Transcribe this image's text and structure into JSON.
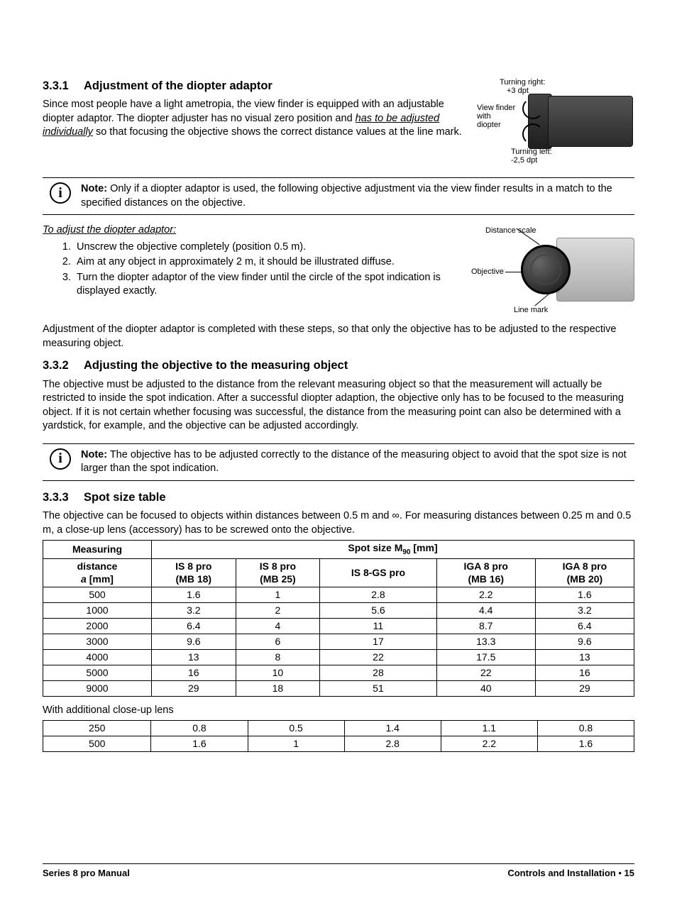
{
  "sec331": {
    "num": "3.3.1",
    "title": "Adjustment of the diopter adaptor",
    "para": "Since most people have a light ametropia, the view finder is equipped with an adjustable diopter adaptor. The diopter adjuster has no visual zero position and ",
    "para_u": "has to be adjusted individually",
    "para2": " so that focusing the objective shows the correct distance values at the line mark."
  },
  "fig1": {
    "l1": "Turning right:",
    "l1b": "+3 dpt",
    "l2a": "View finder",
    "l2b": "with",
    "l2c": "diopter",
    "l3": "Turning left:",
    "l3b": "-2,5 dpt"
  },
  "note1": {
    "bold": "Note:",
    "text": " Only if a diopter adaptor is used, the following objective adjustment via the view finder results in a match to the specified distances on the objective."
  },
  "adjust": {
    "heading": "To adjust the diopter adaptor:",
    "s1": "Unscrew the objective completely (position 0.5 m).",
    "s2": "Aim at any object in approximately 2 m, it should be illustrated diffuse.",
    "s3": "Turn the diopter adaptor of the view finder until the circle of the spot indication is displayed exactly."
  },
  "fig2": {
    "l1": "Distance scale",
    "l2": "Objective",
    "l3": "Line mark"
  },
  "para_after": "Adjustment of the diopter adaptor is completed with these steps, so that only the objective has to be adjusted to the respective measuring object.",
  "sec332": {
    "num": "3.3.2",
    "title": "Adjusting the objective to the measuring object",
    "para": "The objective must be adjusted to the distance from the relevant measuring object so that the measurement will actually be restricted to inside the spot indication. After a successful diopter adaption, the objective only has to be focused to the measuring object. If it is not certain whether focusing was successful, the distance from the measuring point can also be determined with a yardstick, for example, and the objective can be adjusted accordingly."
  },
  "note2": {
    "bold": "Note:",
    "text": " The objective has to be adjusted correctly to the distance of the measuring object to avoid that the spot size is not larger than the spot indication."
  },
  "sec333": {
    "num": "3.3.3",
    "title": "Spot size table",
    "para": "The objective can be focused to objects within distances between 0.5 m and ∞. For measuring distances between 0.25 m and 0.5 m, a close-up lens (accessory) has to be screwed onto the objective."
  },
  "table": {
    "h_measuring": "Measuring",
    "h_spot": "Spot size M",
    "h_spot_sub": "90",
    "h_spot_unit": " [mm]",
    "h_dist1": "distance",
    "h_dist2": "a",
    "h_dist3": " [mm]",
    "c1a": "IS 8 pro",
    "c1b": "(MB 18)",
    "c2a": "IS 8 pro",
    "c2b": "(MB 25)",
    "c3": "IS 8-GS pro",
    "c4a": "IGA 8 pro",
    "c4b": "(MB 16)",
    "c5a": "IGA 8 pro",
    "c5b": "(MB 20)",
    "rows": [
      [
        "500",
        "1.6",
        "1",
        "2.8",
        "2.2",
        "1.6"
      ],
      [
        "1000",
        "3.2",
        "2",
        "5.6",
        "4.4",
        "3.2"
      ],
      [
        "2000",
        "6.4",
        "4",
        "11",
        "8.7",
        "6.4"
      ],
      [
        "3000",
        "9.6",
        "6",
        "17",
        "13.3",
        "9.6"
      ],
      [
        "4000",
        "13",
        "8",
        "22",
        "17.5",
        "13"
      ],
      [
        "5000",
        "16",
        "10",
        "28",
        "22",
        "16"
      ],
      [
        "9000",
        "29",
        "18",
        "51",
        "40",
        "29"
      ]
    ],
    "closeup_label": "With additional close-up lens",
    "rows2": [
      [
        "250",
        "0.8",
        "0.5",
        "1.4",
        "1.1",
        "0.8"
      ],
      [
        "500",
        "1.6",
        "1",
        "2.8",
        "2.2",
        "1.6"
      ]
    ]
  },
  "footer": {
    "left": "Series 8 pro Manual",
    "right1": "Controls and Installation",
    "bullet": "  •  ",
    "pg": "15"
  }
}
